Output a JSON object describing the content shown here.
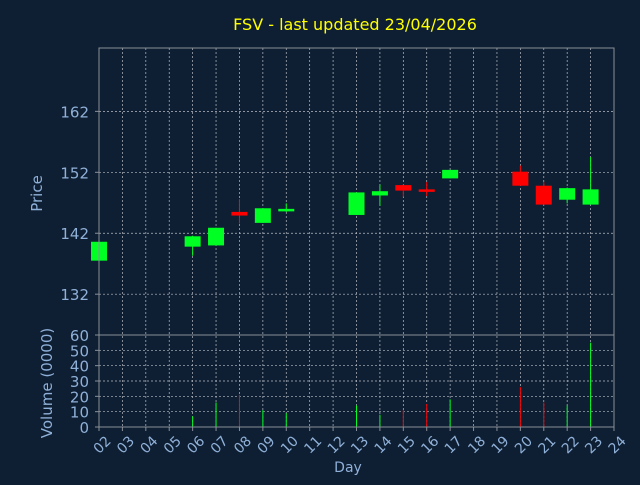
{
  "title": "FSV - last updated 23/04/2026",
  "colors": {
    "background": "#0f1f33",
    "title": "#ffff00",
    "axis_text": "#8fb0d8",
    "frame": "#8a8f98",
    "grid": "#b8bcc4",
    "up": "#00ff22",
    "down": "#ff0000"
  },
  "chart_data": [
    {
      "type": "candlestick",
      "ylabel": "Price",
      "ylim": [
        125.3,
        172.4
      ],
      "yticks": [
        132,
        142,
        152,
        162
      ],
      "grid": true,
      "candles": [
        {
          "day": "02",
          "open": 137.5,
          "high": 140.6,
          "low": 137.5,
          "close": 140.6,
          "dir": "up"
        },
        {
          "day": "06",
          "open": 139.8,
          "high": 141.6,
          "low": 138.3,
          "close": 141.5,
          "dir": "up"
        },
        {
          "day": "07",
          "open": 140.0,
          "high": 142.9,
          "low": 140.0,
          "close": 142.9,
          "dir": "up"
        },
        {
          "day": "08",
          "open": 145.5,
          "high": 147.6,
          "low": 143.6,
          "close": 144.9,
          "dir": "down"
        },
        {
          "day": "09",
          "open": 143.7,
          "high": 146.1,
          "low": 143.7,
          "close": 146.1,
          "dir": "up"
        },
        {
          "day": "10",
          "open": 145.8,
          "high": 146.9,
          "low": 145.5,
          "close": 146.0,
          "dir": "up"
        },
        {
          "day": "13",
          "open": 145.0,
          "high": 148.7,
          "low": 145.0,
          "close": 148.7,
          "dir": "up"
        },
        {
          "day": "14",
          "open": 148.2,
          "high": 150.0,
          "low": 146.5,
          "close": 148.9,
          "dir": "up"
        },
        {
          "day": "15",
          "open": 149.9,
          "high": 150.0,
          "low": 148.0,
          "close": 149.0,
          "dir": "down"
        },
        {
          "day": "16",
          "open": 149.2,
          "high": 150.4,
          "low": 148.1,
          "close": 148.9,
          "dir": "down"
        },
        {
          "day": "17",
          "open": 151.0,
          "high": 152.4,
          "low": 151.0,
          "close": 152.4,
          "dir": "up"
        },
        {
          "day": "20",
          "open": 152.1,
          "high": 153.1,
          "low": 149.8,
          "close": 149.8,
          "dir": "down"
        },
        {
          "day": "21",
          "open": 149.8,
          "high": 150.4,
          "low": 146.7,
          "close": 146.7,
          "dir": "down"
        },
        {
          "day": "22",
          "open": 147.5,
          "high": 149.5,
          "low": 146.9,
          "close": 149.4,
          "dir": "up"
        },
        {
          "day": "23",
          "open": 146.7,
          "high": 154.5,
          "low": 146.7,
          "close": 149.2,
          "dir": "up"
        }
      ]
    },
    {
      "type": "bar",
      "ylabel": "Volume (0000)",
      "ylim": [
        0,
        60
      ],
      "yticks": [
        0,
        10,
        20,
        30,
        40,
        50,
        60
      ],
      "grid": true,
      "bars": [
        {
          "day": "06",
          "value": 7,
          "dir": "up"
        },
        {
          "day": "07",
          "value": 16,
          "dir": "up"
        },
        {
          "day": "08",
          "value": 21,
          "dir": "down"
        },
        {
          "day": "09",
          "value": 11,
          "dir": "up"
        },
        {
          "day": "10",
          "value": 9,
          "dir": "up"
        },
        {
          "day": "13",
          "value": 14,
          "dir": "up"
        },
        {
          "day": "14",
          "value": 8,
          "dir": "up"
        },
        {
          "day": "15",
          "value": 11,
          "dir": "down"
        },
        {
          "day": "16",
          "value": 15,
          "dir": "down"
        },
        {
          "day": "17",
          "value": 18,
          "dir": "up"
        },
        {
          "day": "20",
          "value": 26,
          "dir": "down"
        },
        {
          "day": "21",
          "value": 16,
          "dir": "down"
        },
        {
          "day": "22",
          "value": 14,
          "dir": "up"
        },
        {
          "day": "23",
          "value": 55,
          "dir": "up"
        }
      ]
    }
  ],
  "x_axis": {
    "xlabel": "Day",
    "days": [
      "02",
      "03",
      "04",
      "05",
      "06",
      "07",
      "08",
      "09",
      "10",
      "11",
      "12",
      "13",
      "14",
      "15",
      "16",
      "17",
      "18",
      "19",
      "20",
      "21",
      "22",
      "23",
      "24"
    ]
  }
}
